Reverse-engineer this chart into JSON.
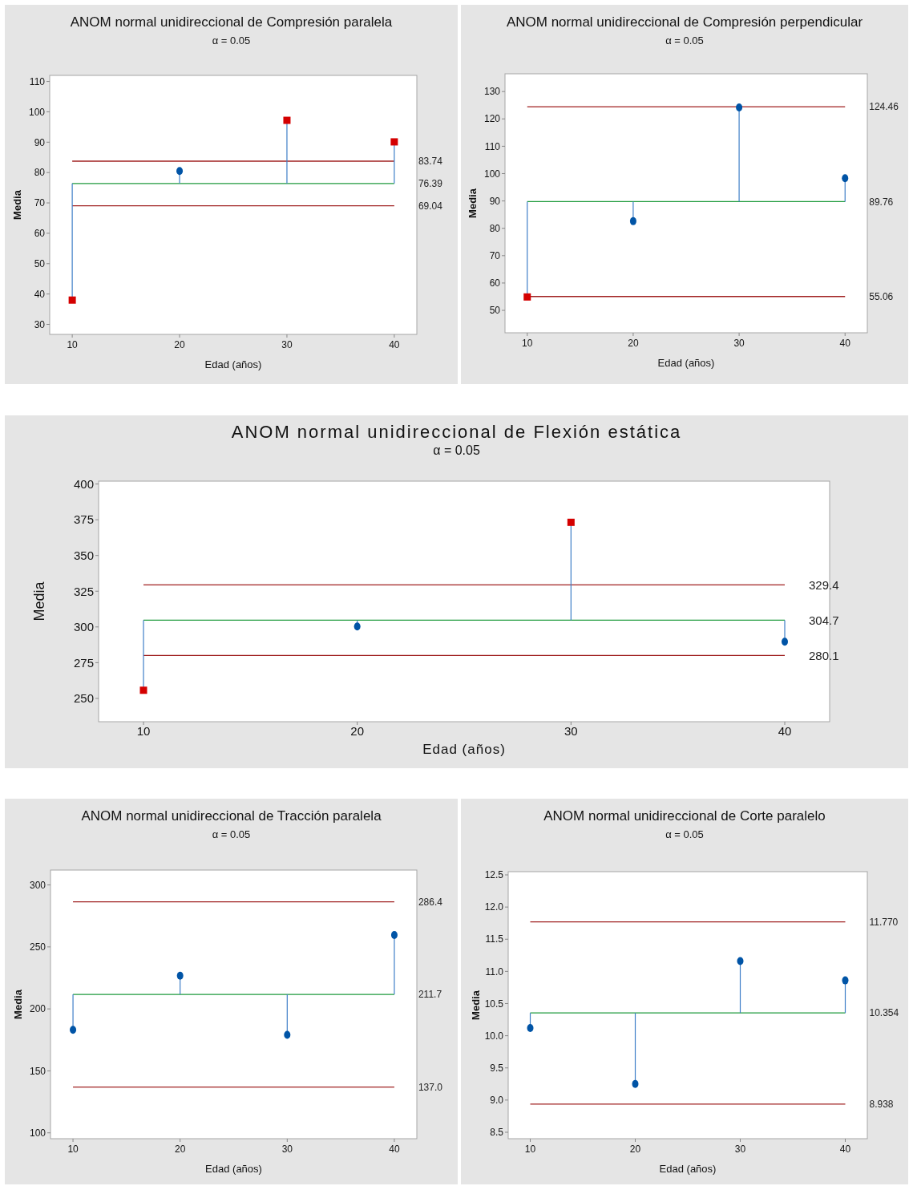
{
  "chart_data": [
    {
      "type": "scatter",
      "title": "ANOM normal unidireccional de Compresión paralela",
      "subtitle": "α = 0.05",
      "xlabel": "Edad (años)",
      "ylabel": "Media",
      "xlim": [
        7.9,
        42.1
      ],
      "xticks": [
        10,
        20,
        30,
        40
      ],
      "ylim": [
        26.7,
        112
      ],
      "yticks": [
        30,
        40,
        50,
        60,
        70,
        80,
        90,
        100,
        110
      ],
      "grid": false,
      "series": [
        {
          "x": [
            20
          ],
          "values": [
            80.5
          ],
          "errors": [
            [
              76.39,
              80.5
            ]
          ],
          "color": "#0054a6",
          "marker": "circle"
        },
        {
          "x": [
            10,
            30,
            40
          ],
          "values": [
            38.0,
            97.2,
            90.1
          ],
          "errors": [
            [
              38.0,
              76.39
            ],
            [
              76.39,
              97.2
            ],
            [
              76.39,
              90.1
            ]
          ],
          "color": "#d40000",
          "marker": "square"
        }
      ],
      "ref_lines": [
        {
          "axis": "y",
          "value": 83.74,
          "label": "83.74",
          "color": "#a02020"
        },
        {
          "axis": "y",
          "value": 76.39,
          "label": "76.39",
          "color": "#1e9a3c"
        },
        {
          "axis": "y",
          "value": 69.04,
          "label": "69.04",
          "color": "#a02020"
        }
      ]
    },
    {
      "type": "scatter",
      "title": "ANOM normal unidireccional de Compresión perpendicular",
      "subtitle": "α = 0.05",
      "xlabel": "Edad (años)",
      "ylabel": "Media",
      "xlim": [
        7.9,
        42.1
      ],
      "xticks": [
        10,
        20,
        30,
        40
      ],
      "ylim": [
        41.8,
        136.5
      ],
      "yticks": [
        50,
        60,
        70,
        80,
        90,
        100,
        110,
        120,
        130
      ],
      "grid": false,
      "series": [
        {
          "x": [
            20,
            30,
            40
          ],
          "values": [
            82.6,
            124.2,
            98.3
          ],
          "errors": [
            [
              82.6,
              89.76
            ],
            [
              89.76,
              124.2
            ],
            [
              89.76,
              98.3
            ]
          ],
          "color": "#0054a6",
          "marker": "circle"
        },
        {
          "x": [
            10
          ],
          "values": [
            54.9
          ],
          "errors": [
            [
              54.9,
              89.76
            ]
          ],
          "color": "#d40000",
          "marker": "square"
        }
      ],
      "ref_lines": [
        {
          "axis": "y",
          "value": 124.46,
          "label": "124.46",
          "color": "#a02020"
        },
        {
          "axis": "y",
          "value": 89.76,
          "label": "89.76",
          "color": "#1e9a3c"
        },
        {
          "axis": "y",
          "value": 55.06,
          "label": "55.06",
          "color": "#a02020"
        }
      ]
    },
    {
      "type": "scatter",
      "title": "ANOM normal unidireccional de Flexión estática",
      "subtitle": "α = 0.05",
      "xlabel": "Edad (años)",
      "ylabel": "Media",
      "xlim": [
        7.9,
        42.1
      ],
      "xticks": [
        10,
        20,
        30,
        40
      ],
      "ylim": [
        233.7,
        402
      ],
      "yticks": [
        250,
        275,
        300,
        325,
        350,
        375,
        400
      ],
      "grid": false,
      "series": [
        {
          "x": [
            20,
            40
          ],
          "values": [
            300.3,
            289.7
          ],
          "errors": [
            [
              300.3,
              304.7
            ],
            [
              289.7,
              304.7
            ]
          ],
          "color": "#0054a6",
          "marker": "circle"
        },
        {
          "x": [
            10,
            30
          ],
          "values": [
            255.7,
            373.2
          ],
          "errors": [
            [
              255.7,
              304.7
            ],
            [
              304.7,
              373.2
            ]
          ],
          "color": "#d40000",
          "marker": "square"
        }
      ],
      "ref_lines": [
        {
          "axis": "y",
          "value": 329.4,
          "label": "329.4",
          "color": "#a02020"
        },
        {
          "axis": "y",
          "value": 304.7,
          "label": "304.7",
          "color": "#1e9a3c"
        },
        {
          "axis": "y",
          "value": 280.1,
          "label": "280.1",
          "color": "#a02020"
        }
      ]
    },
    {
      "type": "scatter",
      "title": "ANOM normal unidireccional de Tracción paralela",
      "subtitle": "α = 0.05",
      "xlabel": "Edad (años)",
      "ylabel": "Media",
      "xlim": [
        7.9,
        42.1
      ],
      "xticks": [
        10,
        20,
        30,
        40
      ],
      "ylim": [
        95.3,
        312
      ],
      "yticks": [
        100,
        150,
        200,
        250,
        300
      ],
      "grid": false,
      "series": [
        {
          "x": [
            10,
            20,
            30,
            40
          ],
          "values": [
            183.1,
            226.8,
            179.1,
            259.6
          ],
          "errors": [
            [
              183.1,
              211.7
            ],
            [
              211.7,
              226.8
            ],
            [
              179.1,
              211.7
            ],
            [
              211.7,
              259.6
            ]
          ],
          "color": "#0054a6",
          "marker": "circle"
        }
      ],
      "ref_lines": [
        {
          "axis": "y",
          "value": 286.4,
          "label": "286.4",
          "color": "#a02020"
        },
        {
          "axis": "y",
          "value": 211.7,
          "label": "211.7",
          "color": "#1e9a3c"
        },
        {
          "axis": "y",
          "value": 137.0,
          "label": "137.0",
          "color": "#a02020"
        }
      ]
    },
    {
      "type": "scatter",
      "title": "ANOM normal unidireccional de Corte paralelo",
      "subtitle": "α = 0.05",
      "xlabel": "Edad (años)",
      "ylabel": "Media",
      "xlim": [
        7.9,
        42.1
      ],
      "xticks": [
        10,
        20,
        30,
        40
      ],
      "ylim": [
        8.4,
        12.55
      ],
      "yticks": [
        {
          "value": 8.5,
          "label": "8.5"
        },
        {
          "value": 9,
          "label": "9.0"
        },
        {
          "value": 9.5,
          "label": "9.5"
        },
        {
          "value": 10,
          "label": "10.0"
        },
        {
          "value": 10.5,
          "label": "10.5"
        },
        {
          "value": 11,
          "label": "11.0"
        },
        {
          "value": 11.5,
          "label": "11.5"
        },
        {
          "value": 12,
          "label": "12.0"
        },
        {
          "value": 12.5,
          "label": "12.5"
        }
      ],
      "grid": false,
      "series": [
        {
          "x": [
            10,
            20,
            30,
            40
          ],
          "values": [
            10.12,
            9.25,
            11.16,
            10.86
          ],
          "errors": [
            [
              10.12,
              10.354
            ],
            [
              9.25,
              10.354
            ],
            [
              10.354,
              11.16
            ],
            [
              10.354,
              10.86
            ]
          ],
          "color": "#0054a6",
          "marker": "circle"
        }
      ],
      "ref_lines": [
        {
          "axis": "y",
          "value": 11.77,
          "label": "11.770",
          "color": "#a02020"
        },
        {
          "axis": "y",
          "value": 10.354,
          "label": "10.354",
          "color": "#1e9a3c"
        },
        {
          "axis": "y",
          "value": 8.938,
          "label": "8.938",
          "color": "#a02020"
        }
      ]
    }
  ]
}
